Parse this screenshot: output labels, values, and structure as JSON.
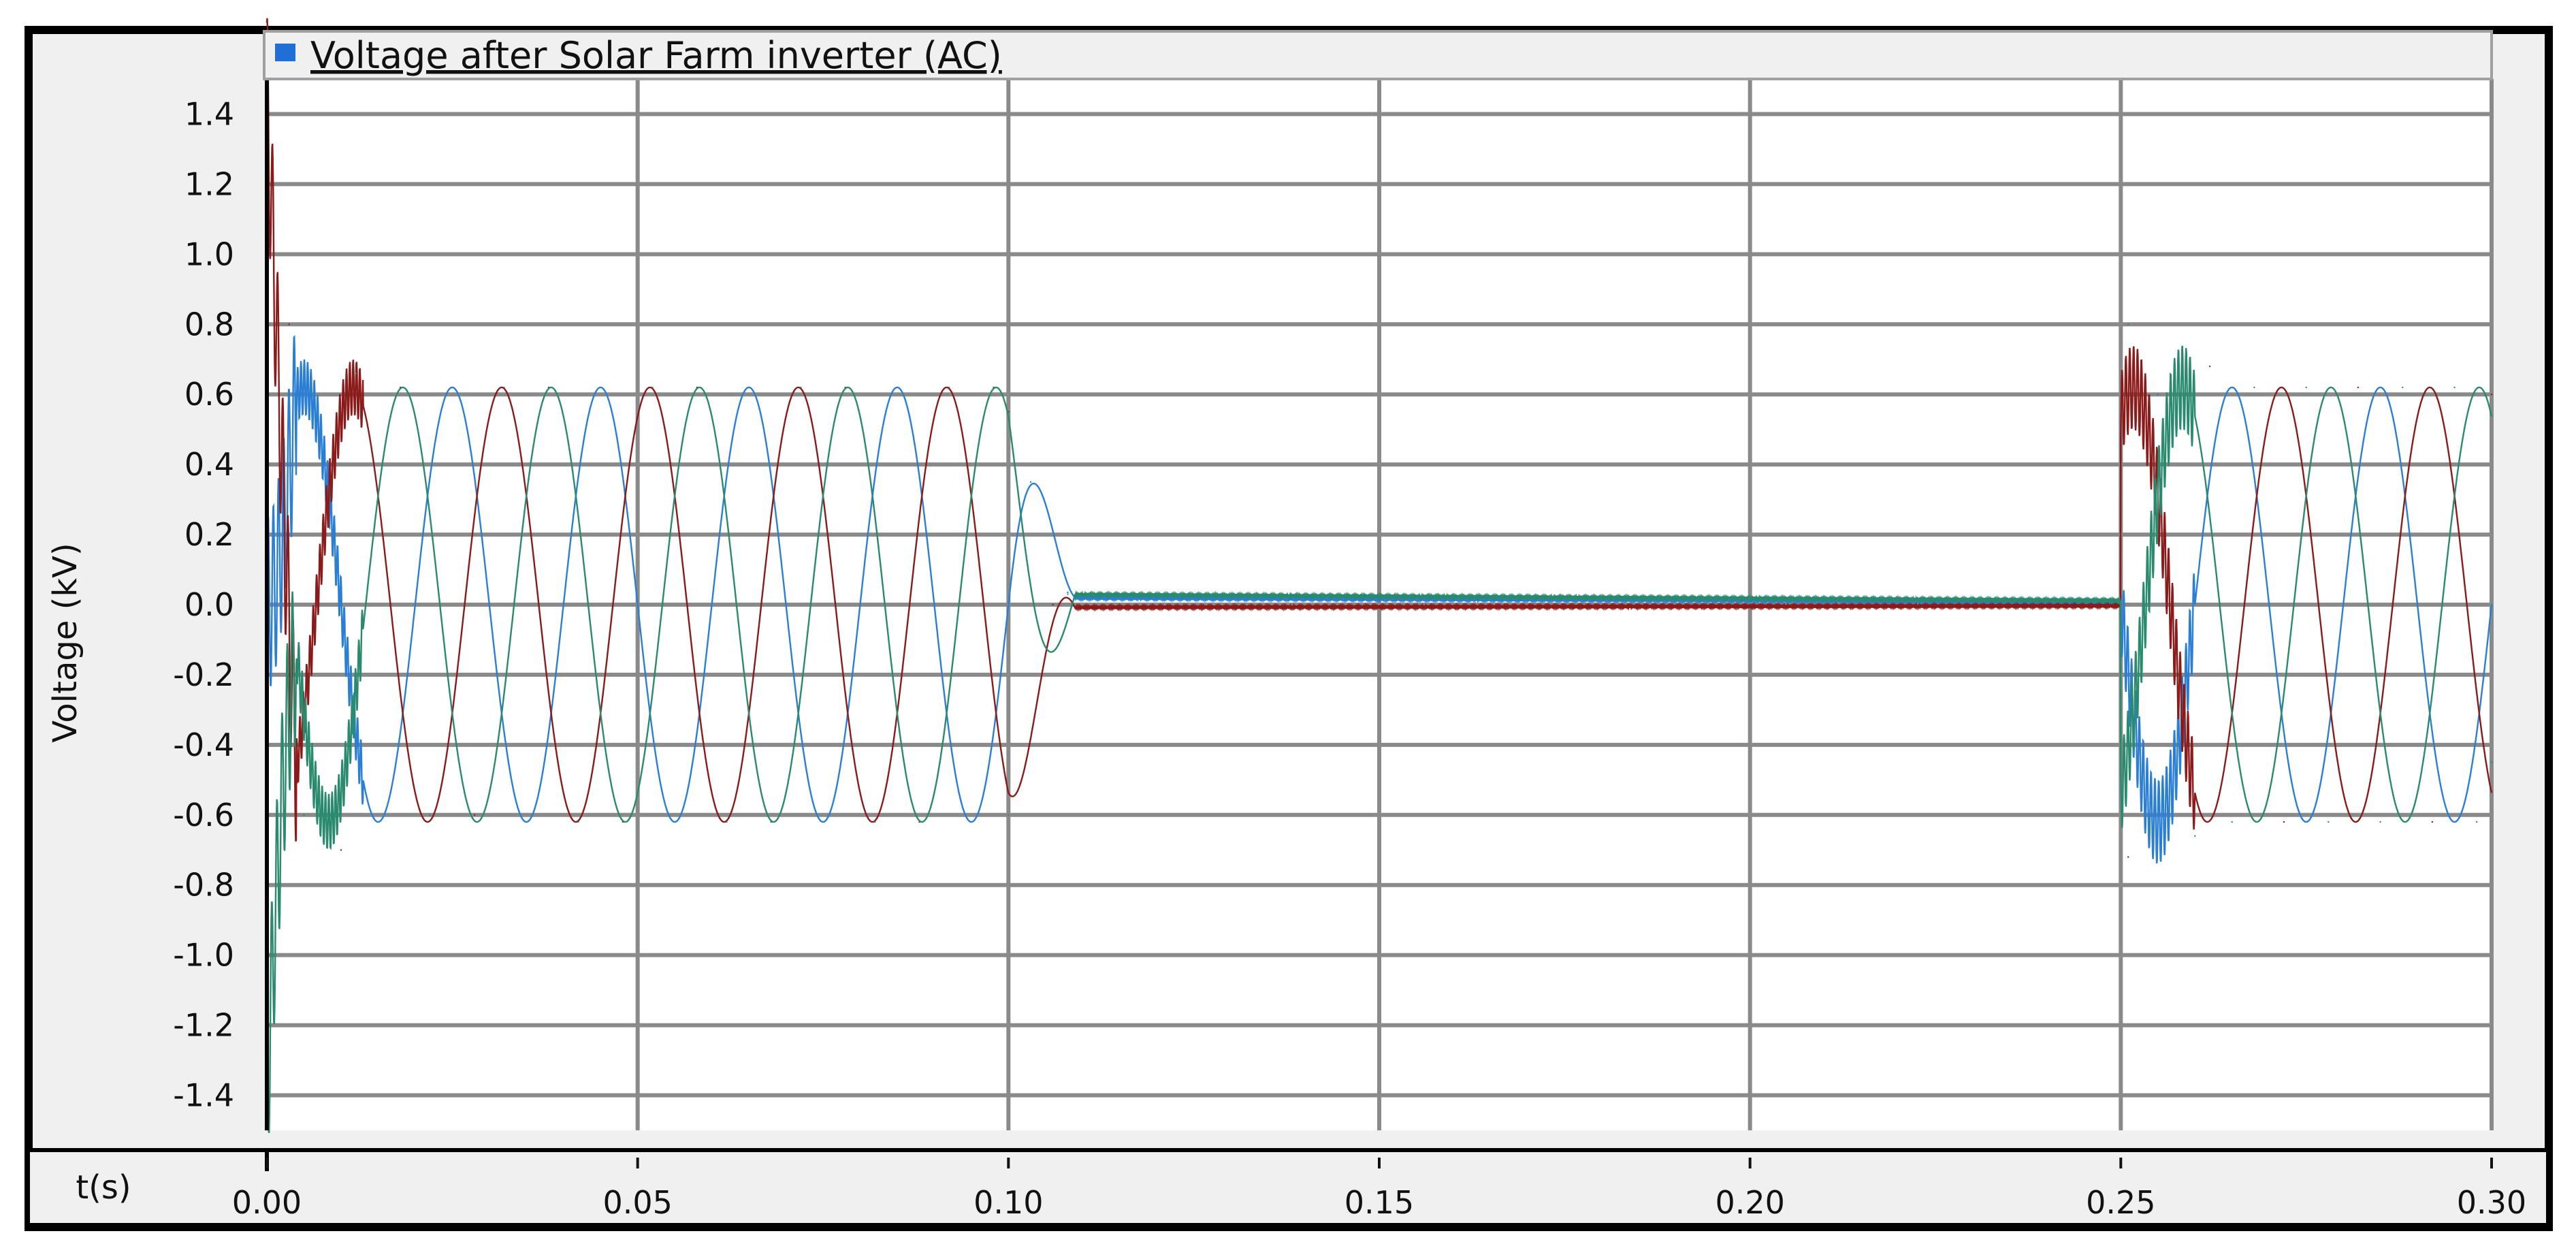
{
  "chart_data": {
    "type": "line",
    "title": "",
    "xlabel": "t(s)",
    "ylabel": "Voltage (kV)",
    "xlim": [
      0.0,
      0.3
    ],
    "ylim": [
      -1.5,
      1.5
    ],
    "x_ticks": [
      "0.00",
      "0.05",
      "0.10",
      "0.15",
      "0.20",
      "0.25",
      "0.30"
    ],
    "y_ticks": [
      "1.4",
      "1.2",
      "1.0",
      "0.8",
      "0.6",
      "0.4",
      "0.2",
      "0.0",
      "-0.2",
      "-0.4",
      "-0.6",
      "-0.8",
      "-1.0",
      "-1.2",
      "-1.4"
    ],
    "grid": true,
    "legend": {
      "label": "Voltage after Solar Farm inverter (AC)",
      "color": "#1f6fd6",
      "placement": "top-left"
    },
    "frequency_hz": 50,
    "amplitude_kv": 0.62,
    "fault_window_s": [
      0.1,
      0.25
    ],
    "series": [
      {
        "color": "#2a7fd4",
        "phase_deg": 0,
        "points": [
          [
            0.0,
            0.0
          ],
          [
            0.005,
            0.62
          ],
          [
            0.015,
            -0.62
          ],
          [
            0.025,
            0.62
          ],
          [
            0.035,
            -0.62
          ],
          [
            0.045,
            0.62
          ],
          [
            0.055,
            -0.62
          ],
          [
            0.065,
            0.62
          ],
          [
            0.075,
            -0.62
          ],
          [
            0.085,
            0.62
          ],
          [
            0.095,
            -0.62
          ],
          [
            0.1,
            0.0
          ],
          [
            0.103,
            0.35
          ],
          [
            0.108,
            0.03
          ],
          [
            0.15,
            0.02
          ],
          [
            0.2,
            0.01
          ],
          [
            0.25,
            0.01
          ],
          [
            0.255,
            0.6
          ],
          [
            0.265,
            -0.62
          ],
          [
            0.275,
            0.62
          ],
          [
            0.285,
            -0.62
          ],
          [
            0.295,
            0.62
          ],
          [
            0.3,
            0.0
          ]
        ]
      },
      {
        "color": "#8b1a1a",
        "phase_deg": 120,
        "points": [
          [
            0.0,
            1.45
          ],
          [
            0.003,
            0.8
          ],
          [
            0.01,
            -0.7
          ],
          [
            0.018,
            0.62
          ],
          [
            0.028,
            -0.6
          ],
          [
            0.038,
            0.62
          ],
          [
            0.048,
            -0.62
          ],
          [
            0.058,
            0.62
          ],
          [
            0.068,
            -0.62
          ],
          [
            0.078,
            0.62
          ],
          [
            0.088,
            -0.62
          ],
          [
            0.098,
            0.62
          ],
          [
            0.1,
            0.55
          ],
          [
            0.106,
            0.0
          ],
          [
            0.11,
            -0.01
          ],
          [
            0.15,
            -0.005
          ],
          [
            0.2,
            0.0
          ],
          [
            0.25,
            0.0
          ],
          [
            0.251,
            -0.72
          ],
          [
            0.262,
            0.68
          ],
          [
            0.272,
            -0.62
          ],
          [
            0.282,
            0.62
          ],
          [
            0.292,
            -0.62
          ],
          [
            0.3,
            0.6
          ]
        ]
      },
      {
        "color": "#2a8a6e",
        "phase_deg": 240,
        "points": [
          [
            0.0,
            -1.4
          ],
          [
            0.005,
            -0.6
          ],
          [
            0.012,
            0.66
          ],
          [
            0.022,
            -0.6
          ],
          [
            0.032,
            0.62
          ],
          [
            0.042,
            -0.62
          ],
          [
            0.052,
            0.62
          ],
          [
            0.062,
            -0.62
          ],
          [
            0.072,
            0.62
          ],
          [
            0.082,
            -0.62
          ],
          [
            0.092,
            0.62
          ],
          [
            0.1,
            -0.6
          ],
          [
            0.108,
            0.035
          ],
          [
            0.15,
            0.025
          ],
          [
            0.2,
            0.015
          ],
          [
            0.25,
            0.01
          ],
          [
            0.251,
            0.8
          ],
          [
            0.26,
            -0.66
          ],
          [
            0.268,
            0.62
          ],
          [
            0.278,
            -0.62
          ],
          [
            0.288,
            0.62
          ],
          [
            0.298,
            -0.62
          ],
          [
            0.3,
            -0.45
          ]
        ]
      }
    ]
  }
}
